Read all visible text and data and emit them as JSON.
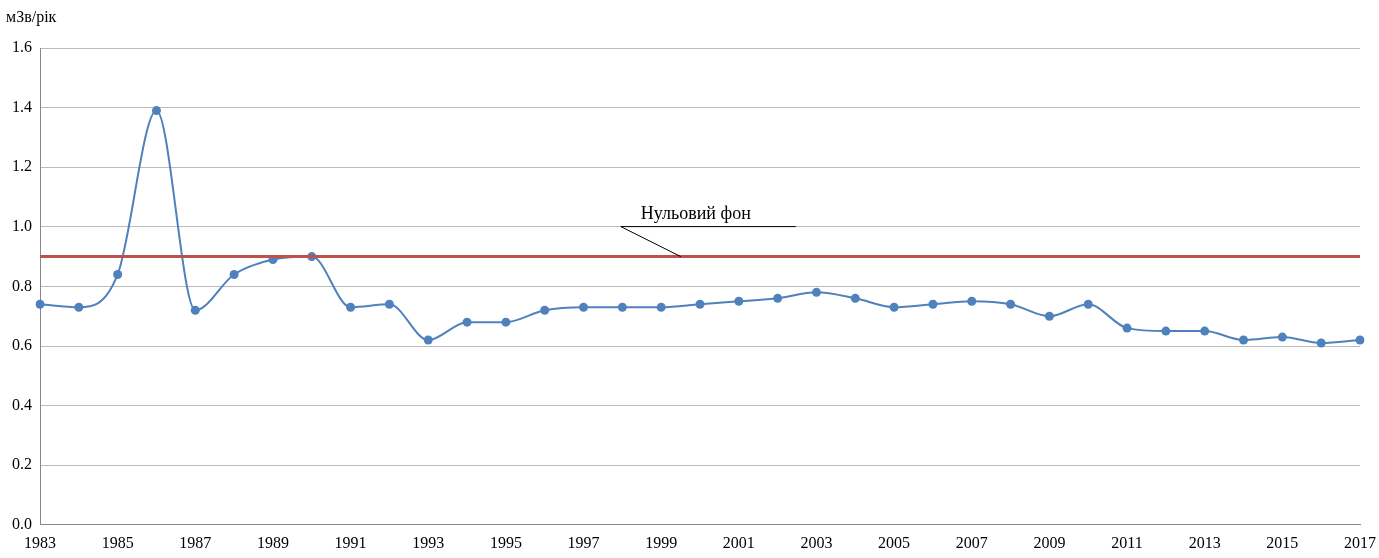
{
  "chart_data": {
    "type": "line",
    "ylabel": "мЗв/рік",
    "categories": [
      "1983",
      null,
      "1985",
      null,
      "1987",
      null,
      "1989",
      null,
      "1991",
      null,
      "1993",
      null,
      "1995",
      null,
      "1997",
      null,
      "1999",
      null,
      "2001",
      null,
      "2003",
      null,
      "2005",
      null,
      "2007",
      null,
      "2009",
      null,
      "2011",
      null,
      "2013",
      null,
      "2015",
      null,
      "2017"
    ],
    "series": [
      {
        "color": "#4f81bd",
        "values": [
          0.74,
          0.73,
          0.84,
          1.39,
          0.72,
          0.84,
          0.89,
          0.9,
          0.73,
          0.74,
          0.62,
          0.68,
          0.68,
          0.72,
          0.73,
          0.73,
          0.73,
          0.74,
          0.75,
          0.76,
          0.78,
          0.76,
          0.73,
          0.74,
          0.75,
          0.74,
          0.7,
          0.74,
          0.66,
          0.65,
          0.65,
          0.62,
          0.63,
          0.61,
          0.62
        ]
      }
    ],
    "ylim": [
      0,
      1.6
    ],
    "yticks": [
      {
        "value": 0,
        "label": "0.0"
      },
      0.2,
      0.4,
      0.6,
      0.8,
      {
        "value": 1,
        "label": "1.0"
      },
      1.2,
      1.4,
      1.6
    ],
    "ref_lines": [
      {
        "axis": "y",
        "value": 0.9,
        "label": "Нульовий фон",
        "color": "#c0504d"
      }
    ],
    "grid": "y",
    "legend": false,
    "marker": "circle",
    "line_style": "solid"
  }
}
